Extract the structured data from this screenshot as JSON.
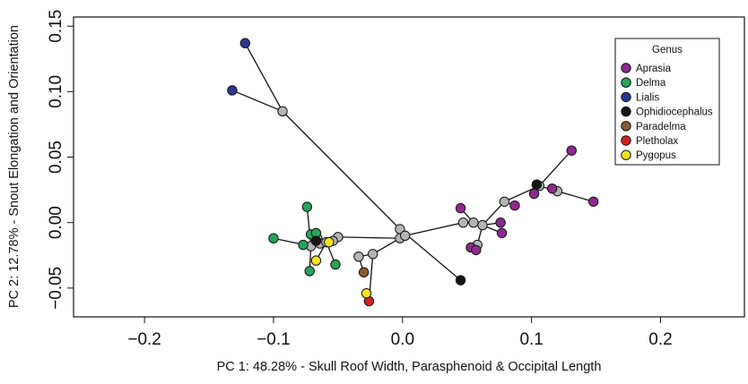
{
  "chart_data": {
    "type": "scatter",
    "xlabel": "PC 1: 48.28% - Skull Roof Width, Parasphenoid & Occipital Length",
    "ylabel": "PC 2: 12.78% - Snout Elongation  and Orientation",
    "xlim": [
      -0.255,
      0.265
    ],
    "ylim": [
      -0.072,
      0.157
    ],
    "x_ticks": [
      -0.2,
      -0.1,
      0.0,
      0.1,
      0.2
    ],
    "x_tick_labels": [
      "−0.2",
      "−0.1",
      "0.0",
      "0.1",
      "0.2"
    ],
    "y_ticks": [
      -0.05,
      0.0,
      0.05,
      0.1,
      0.15
    ],
    "y_tick_labels": [
      "−0.05",
      "0.00",
      "0.05",
      "0.10",
      "0.15"
    ],
    "grid": false,
    "legend": {
      "title": "Genus",
      "placement": "top-right",
      "entries": [
        {
          "label": "Aprasia",
          "color": "#8e2a8f"
        },
        {
          "label": "Delma",
          "color": "#27a35a"
        },
        {
          "label": "Lialis",
          "color": "#2a3796"
        },
        {
          "label": "Ophidiocephalus",
          "color": "#141414"
        },
        {
          "label": "Paradelma",
          "color": "#8b5a2b"
        },
        {
          "label": "Pletholax",
          "color": "#d42020"
        },
        {
          "label": "Pygopus",
          "color": "#f4e31e"
        }
      ]
    },
    "node_color": "#b4b4b4",
    "nodes": [
      [
        -0.093,
        0.085
      ],
      [
        -0.002,
        -0.005
      ],
      [
        -0.002,
        -0.012
      ],
      [
        0.002,
        -0.01
      ],
      [
        0.047,
        0.0
      ],
      [
        0.055,
        0.0
      ],
      [
        0.062,
        -0.002
      ],
      [
        0.058,
        -0.017
      ],
      [
        0.079,
        0.016
      ],
      [
        0.106,
        0.028
      ],
      [
        0.12,
        0.024
      ],
      [
        -0.071,
        -0.018
      ],
      [
        -0.066,
        -0.012
      ],
      [
        -0.05,
        -0.011
      ],
      [
        -0.054,
        -0.014
      ],
      [
        -0.034,
        -0.026
      ],
      [
        -0.023,
        -0.024
      ],
      [
        -0.064,
        -0.016
      ],
      [
        -0.059,
        -0.015
      ]
    ],
    "edges": [
      [
        -0.122,
        0.137,
        -0.093,
        0.085
      ],
      [
        -0.132,
        0.101,
        -0.093,
        0.085
      ],
      [
        -0.093,
        0.085,
        -0.002,
        -0.005
      ],
      [
        -0.002,
        -0.005,
        0.045,
        -0.044
      ],
      [
        -0.002,
        -0.005,
        0.002,
        -0.01
      ],
      [
        0.002,
        -0.01,
        -0.002,
        -0.012
      ],
      [
        0.002,
        -0.01,
        0.047,
        0.0
      ],
      [
        0.047,
        0.0,
        0.055,
        0.0
      ],
      [
        0.055,
        0.0,
        0.062,
        -0.002
      ],
      [
        0.062,
        -0.002,
        0.076,
        0.0
      ],
      [
        0.062,
        -0.002,
        0.058,
        -0.017
      ],
      [
        0.058,
        -0.017,
        0.053,
        -0.019
      ],
      [
        0.058,
        -0.017,
        0.057,
        -0.021
      ],
      [
        0.055,
        0.0,
        0.045,
        0.011
      ],
      [
        0.062,
        -0.002,
        0.079,
        0.016
      ],
      [
        0.079,
        0.016,
        0.087,
        0.013
      ],
      [
        0.079,
        0.016,
        0.106,
        0.028
      ],
      [
        0.106,
        0.028,
        0.131,
        0.055
      ],
      [
        0.106,
        0.028,
        0.104,
        0.029
      ],
      [
        0.106,
        0.028,
        0.102,
        0.022
      ],
      [
        0.106,
        0.028,
        0.12,
        0.024
      ],
      [
        0.12,
        0.024,
        0.148,
        0.016
      ],
      [
        0.12,
        0.024,
        0.116,
        0.026
      ],
      [
        0.062,
        -0.002,
        0.077,
        -0.008
      ],
      [
        -0.002,
        -0.012,
        -0.05,
        -0.011
      ],
      [
        -0.05,
        -0.011,
        -0.054,
        -0.014
      ],
      [
        -0.054,
        -0.014,
        -0.064,
        -0.016
      ],
      [
        -0.064,
        -0.016,
        -0.071,
        -0.018
      ],
      [
        -0.071,
        -0.018,
        -0.074,
        0.012
      ],
      [
        -0.071,
        -0.018,
        -0.1,
        -0.012
      ],
      [
        -0.071,
        -0.018,
        -0.077,
        -0.017
      ],
      [
        -0.071,
        -0.018,
        -0.072,
        -0.037
      ],
      [
        -0.066,
        -0.012,
        -0.071,
        -0.009
      ],
      [
        -0.066,
        -0.012,
        -0.067,
        -0.008
      ],
      [
        -0.064,
        -0.016,
        -0.066,
        -0.012
      ],
      [
        -0.064,
        -0.016,
        -0.067,
        -0.014
      ],
      [
        -0.054,
        -0.014,
        -0.057,
        -0.015
      ],
      [
        -0.059,
        -0.015,
        -0.052,
        -0.032
      ],
      [
        -0.059,
        -0.015,
        -0.067,
        -0.029
      ],
      [
        -0.002,
        -0.012,
        -0.023,
        -0.024
      ],
      [
        -0.023,
        -0.024,
        -0.034,
        -0.026
      ],
      [
        -0.034,
        -0.026,
        -0.03,
        -0.038
      ],
      [
        -0.023,
        -0.024,
        -0.026,
        -0.06
      ],
      [
        -0.026,
        -0.06,
        -0.028,
        -0.054
      ]
    ],
    "series": [
      {
        "name": "Aprasia",
        "color": "#8e2a8f",
        "points": [
          [
            0.131,
            0.055
          ],
          [
            0.148,
            0.016
          ],
          [
            0.116,
            0.026
          ],
          [
            0.102,
            0.022
          ],
          [
            0.087,
            0.013
          ],
          [
            0.076,
            0.0
          ],
          [
            0.077,
            -0.008
          ],
          [
            0.045,
            0.011
          ],
          [
            0.053,
            -0.019
          ],
          [
            0.057,
            -0.021
          ]
        ]
      },
      {
        "name": "Delma",
        "color": "#27a35a",
        "points": [
          [
            -0.074,
            0.012
          ],
          [
            -0.1,
            -0.012
          ],
          [
            -0.077,
            -0.017
          ],
          [
            -0.071,
            -0.009
          ],
          [
            -0.067,
            -0.008
          ],
          [
            -0.072,
            -0.037
          ],
          [
            -0.052,
            -0.032
          ]
        ]
      },
      {
        "name": "Lialis",
        "color": "#2a3796",
        "points": [
          [
            -0.122,
            0.137
          ],
          [
            -0.132,
            0.101
          ]
        ]
      },
      {
        "name": "Ophidiocephalus",
        "color": "#141414",
        "points": [
          [
            0.045,
            -0.044
          ],
          [
            0.104,
            0.029
          ],
          [
            -0.067,
            -0.014
          ]
        ]
      },
      {
        "name": "Paradelma",
        "color": "#8b5a2b",
        "points": [
          [
            -0.03,
            -0.038
          ]
        ]
      },
      {
        "name": "Pletholax",
        "color": "#d42020",
        "points": [
          [
            -0.026,
            -0.06
          ]
        ]
      },
      {
        "name": "Pygopus",
        "color": "#f4e31e",
        "points": [
          [
            -0.057,
            -0.015
          ],
          [
            -0.067,
            -0.029
          ],
          [
            -0.028,
            -0.054
          ]
        ]
      }
    ]
  }
}
